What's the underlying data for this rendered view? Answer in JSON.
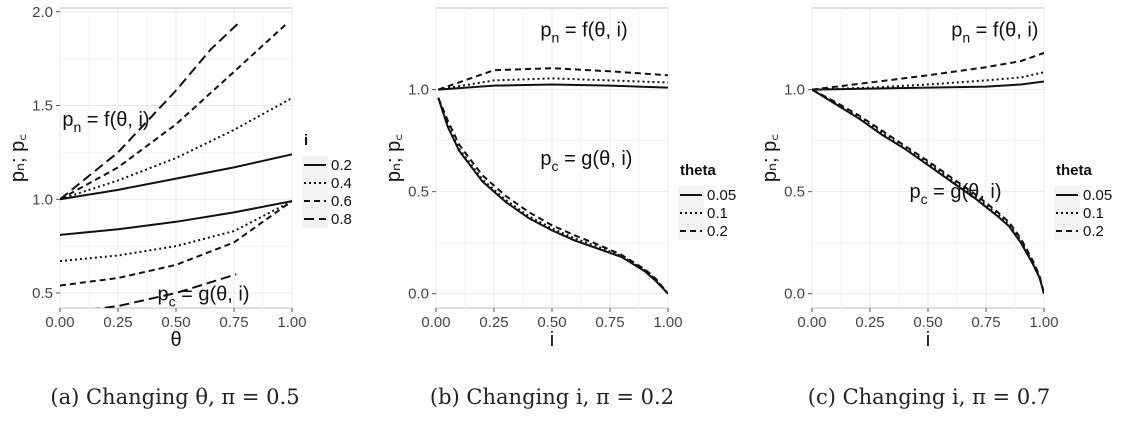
{
  "chart_data": [
    {
      "type": "line",
      "caption": "(a)  Changing θ, π = 0.5",
      "xlabel": "θ",
      "ylabel": "pₙ; p꜀",
      "xlim": [
        0,
        1
      ],
      "ylim": [
        0.42,
        2.02
      ],
      "xticks": [
        "0.00",
        "0.25",
        "0.50",
        "0.75",
        "1.00"
      ],
      "yticks": [
        {
          "v": 0.5,
          "label": "0.5"
        },
        {
          "v": 1.0,
          "label": "1.0"
        },
        {
          "v": 1.5,
          "label": "1.5"
        },
        {
          "v": 2.0,
          "label": "2.0"
        }
      ],
      "grid": true,
      "legend": {
        "title": "i",
        "position": "right",
        "entries": [
          {
            "label": "0.2",
            "dash": "solid"
          },
          {
            "label": "0.4",
            "dash": "dotted"
          },
          {
            "label": "0.6",
            "dash": "dashed"
          },
          {
            "label": "0.8",
            "dash": "longdash"
          }
        ]
      },
      "annotations": [
        {
          "main": "p",
          "sub": "n",
          "rest": " = f(θ, i)",
          "x": 0.01,
          "y": 1.39
        },
        {
          "main": "p",
          "sub": "c",
          "rest": " = g(θ, i)",
          "x": 0.42,
          "y": 0.46
        }
      ],
      "series": [
        {
          "name": "f i=0.2",
          "dash": "solid",
          "x": [
            0,
            0.25,
            0.5,
            0.75,
            1.0
          ],
          "y": [
            1.0,
            1.05,
            1.11,
            1.17,
            1.24
          ]
        },
        {
          "name": "f i=0.4",
          "dash": "dotted",
          "x": [
            0,
            0.25,
            0.5,
            0.75,
            1.0
          ],
          "y": [
            1.0,
            1.1,
            1.22,
            1.37,
            1.54
          ]
        },
        {
          "name": "f i=0.6",
          "dash": "dashed",
          "x": [
            0,
            0.25,
            0.5,
            0.75,
            0.98
          ],
          "y": [
            1.0,
            1.17,
            1.4,
            1.68,
            1.94
          ]
        },
        {
          "name": "f i=0.8",
          "dash": "longdash",
          "x": [
            0,
            0.25,
            0.5,
            0.65,
            0.77
          ],
          "y": [
            1.0,
            1.25,
            1.58,
            1.8,
            1.94
          ]
        },
        {
          "name": "g i=0.2",
          "dash": "solid",
          "x": [
            0,
            0.25,
            0.5,
            0.75,
            1.0
          ],
          "y": [
            0.81,
            0.84,
            0.88,
            0.93,
            0.99
          ]
        },
        {
          "name": "g i=0.4",
          "dash": "dotted",
          "x": [
            0,
            0.25,
            0.5,
            0.75,
            1.0
          ],
          "y": [
            0.67,
            0.7,
            0.75,
            0.83,
            0.99
          ]
        },
        {
          "name": "g i=0.6",
          "dash": "dashed",
          "x": [
            0,
            0.25,
            0.5,
            0.75,
            1.0
          ],
          "y": [
            0.54,
            0.58,
            0.65,
            0.77,
            0.99
          ]
        },
        {
          "name": "g i=0.8",
          "dash": "longdash",
          "x": [
            0,
            0.25,
            0.5,
            0.76
          ],
          "y": [
            0.39,
            0.43,
            0.5,
            0.6
          ]
        }
      ]
    },
    {
      "type": "line",
      "caption": "(b)  Changing i, π = 0.2",
      "xlabel": "i",
      "ylabel": "pₙ; p꜀",
      "xlim": [
        0,
        1
      ],
      "ylim": [
        -0.07,
        1.4
      ],
      "xticks": [
        "0.00",
        "0.25",
        "0.50",
        "0.75",
        "1.00"
      ],
      "yticks": [
        {
          "v": 0.0,
          "label": "0.0"
        },
        {
          "v": 0.5,
          "label": "0.5"
        },
        {
          "v": 1.0,
          "label": "1.0"
        }
      ],
      "grid": true,
      "legend": {
        "title": "theta",
        "position": "right",
        "entries": [
          {
            "label": "0.05",
            "dash": "solid"
          },
          {
            "label": "0.1",
            "dash": "dotted"
          },
          {
            "label": "0.2",
            "dash": "dashed"
          }
        ]
      },
      "annotations": [
        {
          "main": "p",
          "sub": "n",
          "rest": " = f(θ, i)",
          "x": 0.45,
          "y": 1.26
        },
        {
          "main": "p",
          "sub": "c",
          "rest": " = g(θ, i)",
          "x": 0.45,
          "y": 0.63
        }
      ],
      "series": [
        {
          "name": "f theta=0.05",
          "dash": "solid",
          "x": [
            0.01,
            0.25,
            0.5,
            0.75,
            1.0
          ],
          "y": [
            1.0,
            1.02,
            1.025,
            1.02,
            1.01
          ]
        },
        {
          "name": "f theta=0.1",
          "dash": "dotted",
          "x": [
            0.01,
            0.25,
            0.5,
            0.75,
            1.0
          ],
          "y": [
            1.0,
            1.045,
            1.055,
            1.045,
            1.035
          ]
        },
        {
          "name": "f theta=0.2",
          "dash": "dashed",
          "x": [
            0.01,
            0.25,
            0.5,
            0.75,
            1.0
          ],
          "y": [
            1.0,
            1.095,
            1.105,
            1.09,
            1.07
          ]
        },
        {
          "name": "g theta=0.05",
          "dash": "solid",
          "x": [
            0.01,
            0.05,
            0.1,
            0.2,
            0.3,
            0.4,
            0.5,
            0.6,
            0.7,
            0.8,
            0.9,
            0.95,
            1.0
          ],
          "y": [
            0.96,
            0.82,
            0.7,
            0.55,
            0.45,
            0.37,
            0.31,
            0.26,
            0.22,
            0.18,
            0.11,
            0.06,
            0.0
          ]
        },
        {
          "name": "g theta=0.1",
          "dash": "dotted",
          "x": [
            0.01,
            0.05,
            0.1,
            0.2,
            0.3,
            0.4,
            0.5,
            0.6,
            0.7,
            0.8,
            0.9,
            0.95,
            1.0
          ],
          "y": [
            0.96,
            0.83,
            0.71,
            0.56,
            0.46,
            0.38,
            0.32,
            0.27,
            0.23,
            0.185,
            0.115,
            0.065,
            0.0
          ]
        },
        {
          "name": "g theta=0.2",
          "dash": "dashed",
          "x": [
            0.01,
            0.05,
            0.1,
            0.2,
            0.3,
            0.4,
            0.5,
            0.6,
            0.7,
            0.8,
            0.9,
            0.95,
            1.0
          ],
          "y": [
            0.96,
            0.85,
            0.73,
            0.58,
            0.48,
            0.4,
            0.335,
            0.285,
            0.24,
            0.19,
            0.12,
            0.07,
            0.0
          ]
        }
      ]
    },
    {
      "type": "line",
      "caption": "(c)  Changing i, π = 0.7",
      "xlabel": "i",
      "ylabel": "pₙ; p꜀",
      "xlim": [
        0,
        1
      ],
      "ylim": [
        -0.07,
        1.4
      ],
      "xticks": [
        "0.00",
        "0.25",
        "0.50",
        "0.75",
        "1.00"
      ],
      "yticks": [
        {
          "v": 0.0,
          "label": "0.0"
        },
        {
          "v": 0.5,
          "label": "0.5"
        },
        {
          "v": 1.0,
          "label": "1.0"
        }
      ],
      "grid": true,
      "legend": {
        "title": "theta",
        "position": "right",
        "entries": [
          {
            "label": "0.05",
            "dash": "solid"
          },
          {
            "label": "0.1",
            "dash": "dotted"
          },
          {
            "label": "0.2",
            "dash": "dashed"
          }
        ]
      },
      "annotations": [
        {
          "main": "p",
          "sub": "n",
          "rest": " = f(θ, i)",
          "x": 0.6,
          "y": 1.26
        },
        {
          "main": "p",
          "sub": "c",
          "rest": " = g(θ, i)",
          "x": 0.42,
          "y": 0.47
        }
      ],
      "series": [
        {
          "name": "f theta=0.05",
          "dash": "solid",
          "x": [
            0.0,
            0.25,
            0.5,
            0.75,
            0.9,
            1.0
          ],
          "y": [
            1.0,
            1.005,
            1.01,
            1.015,
            1.025,
            1.04
          ]
        },
        {
          "name": "f theta=0.1",
          "dash": "dotted",
          "x": [
            0.0,
            0.25,
            0.5,
            0.75,
            0.9,
            1.0
          ],
          "y": [
            1.0,
            1.01,
            1.025,
            1.045,
            1.06,
            1.085
          ]
        },
        {
          "name": "f theta=0.2",
          "dash": "dashed",
          "x": [
            0.0,
            0.25,
            0.5,
            0.75,
            0.9,
            1.0
          ],
          "y": [
            1.0,
            1.035,
            1.07,
            1.11,
            1.14,
            1.18
          ]
        },
        {
          "name": "g theta=0.05",
          "dash": "solid",
          "x": [
            0.0,
            0.1,
            0.2,
            0.3,
            0.4,
            0.5,
            0.6,
            0.7,
            0.8,
            0.85,
            0.9,
            0.95,
            0.98,
            1.0
          ],
          "y": [
            1.0,
            0.93,
            0.86,
            0.78,
            0.71,
            0.63,
            0.55,
            0.47,
            0.38,
            0.33,
            0.25,
            0.15,
            0.08,
            0.0
          ]
        },
        {
          "name": "g theta=0.1",
          "dash": "dotted",
          "x": [
            0.0,
            0.1,
            0.2,
            0.3,
            0.4,
            0.5,
            0.6,
            0.7,
            0.8,
            0.85,
            0.9,
            0.95,
            0.98,
            1.0
          ],
          "y": [
            1.0,
            0.935,
            0.865,
            0.79,
            0.715,
            0.64,
            0.56,
            0.48,
            0.39,
            0.34,
            0.26,
            0.155,
            0.085,
            0.0
          ]
        },
        {
          "name": "g theta=0.2",
          "dash": "dashed",
          "x": [
            0.0,
            0.1,
            0.2,
            0.3,
            0.4,
            0.5,
            0.6,
            0.7,
            0.8,
            0.85,
            0.9,
            0.95,
            0.98,
            1.0
          ],
          "y": [
            1.0,
            0.94,
            0.875,
            0.8,
            0.725,
            0.65,
            0.57,
            0.49,
            0.4,
            0.35,
            0.27,
            0.165,
            0.09,
            0.0
          ]
        }
      ]
    }
  ]
}
